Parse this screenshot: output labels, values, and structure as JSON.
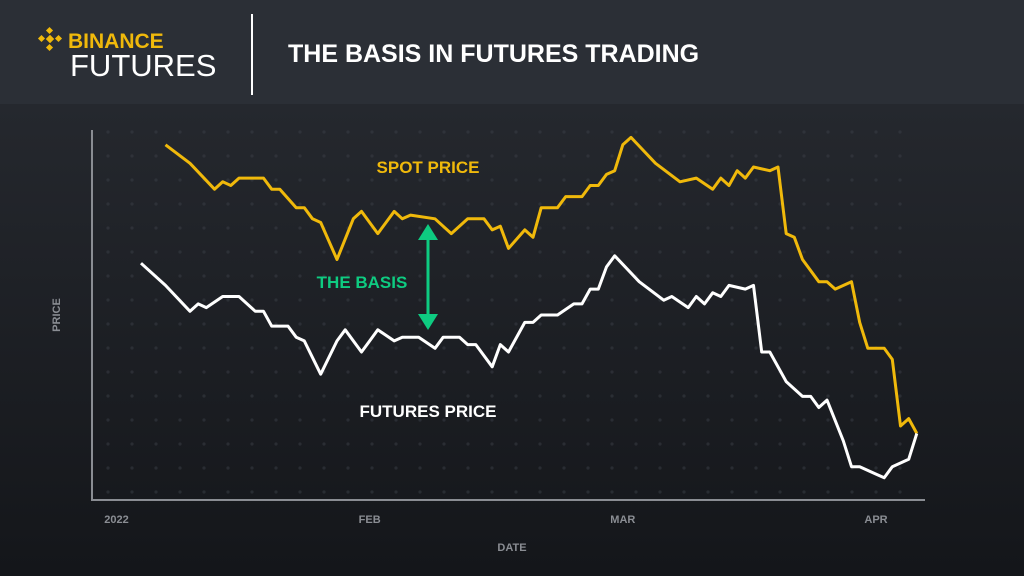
{
  "header": {
    "brand": "BINANCE",
    "product": "FUTURES",
    "title": "THE BASIS IN FUTURES TRADING"
  },
  "chart_data": {
    "type": "line",
    "xlabel": "DATE",
    "ylabel": "PRICE",
    "xlim": [
      -3,
      99
    ],
    "ylim": [
      0,
      100
    ],
    "xticks": [
      {
        "value": 0,
        "label": "2022"
      },
      {
        "value": 31,
        "label": "FEB"
      },
      {
        "value": 62,
        "label": "MAR"
      },
      {
        "value": 93,
        "label": "APR"
      }
    ],
    "annotations": [
      "SPOT PRICE",
      "THE BASIS",
      "FUTURES PRICE"
    ],
    "series": [
      {
        "name": "SPOT PRICE",
        "color": "#f0b90b",
        "x": [
          6,
          9,
          12,
          13,
          14,
          15,
          18,
          19,
          20,
          22,
          23,
          24,
          25,
          27,
          29,
          30,
          32,
          33,
          34,
          35,
          36,
          39,
          41,
          43,
          45,
          46,
          47,
          48,
          50,
          51,
          52,
          54,
          55,
          57,
          58,
          59,
          60,
          61,
          62,
          63,
          66,
          69,
          71,
          73,
          74,
          75,
          76,
          77,
          78,
          80,
          81,
          82,
          83,
          84,
          86,
          87,
          88,
          90,
          91,
          92,
          94,
          95,
          96,
          97,
          98
        ],
        "values": [
          96,
          91,
          84,
          86,
          85,
          87,
          87,
          84,
          84,
          79,
          79,
          76,
          75,
          65,
          76,
          78,
          72,
          75,
          78,
          76,
          77,
          76,
          72,
          76,
          76,
          73,
          74,
          68,
          73,
          71,
          79,
          79,
          82,
          82,
          85,
          85,
          88,
          89,
          96,
          98,
          91,
          86,
          87,
          84,
          87,
          85,
          89,
          87,
          90,
          89,
          90,
          72,
          71,
          65,
          59,
          59,
          57,
          59,
          48,
          41,
          41,
          38,
          20,
          22,
          18
        ]
      },
      {
        "name": "FUTURES PRICE",
        "color": "#ffffff",
        "x": [
          3,
          6,
          9,
          10,
          11,
          13,
          15,
          17,
          18,
          19,
          21,
          22,
          23,
          25,
          27,
          28,
          30,
          31,
          32,
          34,
          35,
          37,
          39,
          40,
          42,
          43,
          44,
          46,
          47,
          48,
          50,
          51,
          52,
          54,
          56,
          57,
          58,
          59,
          60,
          61,
          64,
          67,
          68,
          70,
          71,
          72,
          73,
          74,
          75,
          77,
          78,
          79,
          80,
          82,
          84,
          85,
          86,
          87,
          89,
          90,
          91,
          93,
          94,
          95,
          97,
          98
        ],
        "values": [
          64,
          58,
          51,
          53,
          52,
          55,
          55,
          51,
          51,
          47,
          47,
          44,
          43,
          34,
          43,
          46,
          40,
          43,
          46,
          43,
          44,
          44,
          41,
          44,
          44,
          42,
          42,
          36,
          42,
          40,
          48,
          48,
          50,
          50,
          53,
          53,
          57,
          57,
          63,
          66,
          59,
          54,
          55,
          52,
          55,
          53,
          56,
          55,
          58,
          57,
          58,
          40,
          40,
          32,
          28,
          28,
          25,
          27,
          16,
          9,
          9,
          7,
          6,
          9,
          11,
          18
        ]
      }
    ]
  }
}
